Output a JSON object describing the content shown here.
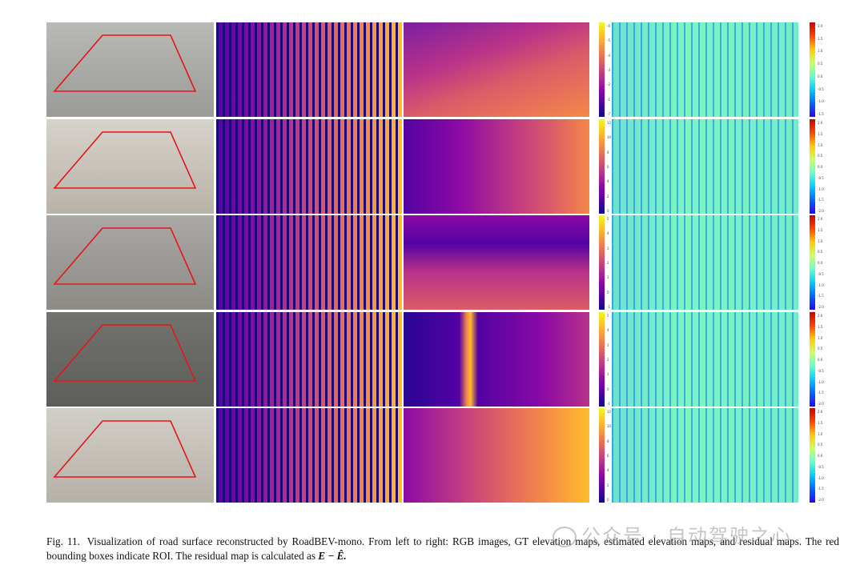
{
  "figure": {
    "caption_label": "Fig. 11.",
    "caption_text": "Visualization of road surface reconstructed by RoadBEV-mono. From left to right: RGB images, GT elevation maps, estimated elevation maps, and residual maps. The red bounding boxes indicate ROI. The residual map is calculated as ",
    "caption_formula": "E − Ê.",
    "columns": [
      "RGB images",
      "GT elevation maps",
      "estimated elevation maps",
      "residual maps"
    ],
    "roi_color": "#e8141c",
    "rows": [
      {
        "gt_ticks": [
          "-6",
          "-5",
          "-4",
          "-3",
          "-2",
          "-1",
          "-7"
        ],
        "res_ticks": [
          "2.0",
          "1.5",
          "1.0",
          "0.5",
          "0.0",
          "-0.5",
          "-1.0",
          "-1.5"
        ]
      },
      {
        "gt_ticks": [
          "12",
          "10",
          "8",
          "6",
          "4",
          "2",
          "0"
        ],
        "res_ticks": [
          "2.0",
          "1.5",
          "1.0",
          "0.5",
          "0.0",
          "-0.5",
          "-1.0",
          "-1.5",
          "-2.0"
        ]
      },
      {
        "gt_ticks": [
          "5",
          "4",
          "3",
          "2",
          "1",
          "0",
          "-1"
        ],
        "res_ticks": [
          "2.0",
          "1.5",
          "1.0",
          "0.5",
          "0.0",
          "-0.5",
          "-1.0",
          "-1.5",
          "-2.0"
        ]
      },
      {
        "gt_ticks": [
          "5",
          "4",
          "3",
          "2",
          "1",
          "0",
          "-1"
        ],
        "res_ticks": [
          "2.0",
          "1.5",
          "1.0",
          "0.5",
          "0.0",
          "-0.5",
          "-1.0",
          "-1.5",
          "-2.0"
        ]
      },
      {
        "gt_ticks": [
          "12",
          "10",
          "8",
          "6",
          "4",
          "2",
          "0"
        ],
        "res_ticks": [
          "2.0",
          "1.5",
          "1.0",
          "0.5",
          "0.0",
          "-0.5",
          "-1.0",
          "-1.5",
          "-2.0"
        ]
      }
    ],
    "colors": {
      "plasma": [
        "#0d0887",
        "#5302a3",
        "#8b0aa5",
        "#b83289",
        "#db5c68",
        "#f48849",
        "#febd2a",
        "#f0f921"
      ],
      "jet": [
        "#2b00ff",
        "#0066ff",
        "#00ccff",
        "#66ffcc",
        "#ccff66",
        "#ffcc00",
        "#ff4400",
        "#cc0000"
      ]
    }
  },
  "watermark": "公众号 · 自动驾驶之心"
}
